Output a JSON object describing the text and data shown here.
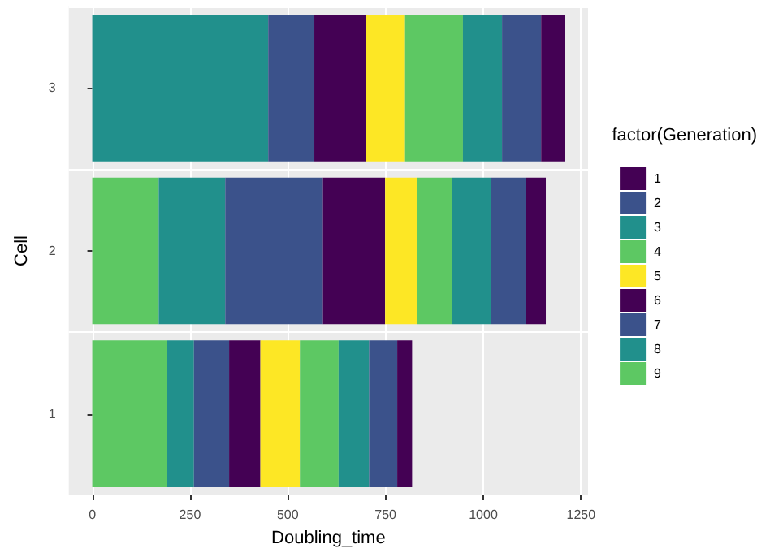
{
  "chart_data": {
    "type": "bar",
    "orientation": "horizontal",
    "stacked": true,
    "xlabel": "Doubling_time",
    "ylabel": "Cell",
    "legend_title": "factor(Generation)",
    "categories": [
      "3",
      "2",
      "1"
    ],
    "series": [
      {
        "name": "9",
        "color": "#5dc863",
        "values": [
          null,
          170,
          190
        ]
      },
      {
        "name": "8",
        "color": "#21908c",
        "values": [
          450,
          170,
          70
        ]
      },
      {
        "name": "7",
        "color": "#3b528b",
        "values": [
          118,
          250,
          90
        ]
      },
      {
        "name": "6",
        "color": "#440154",
        "values": [
          131,
          159,
          80
        ]
      },
      {
        "name": "5",
        "color": "#fde725",
        "values": [
          101,
          81,
          101
        ]
      },
      {
        "name": "4",
        "color": "#5dc863",
        "values": [
          148,
          91,
          99
        ]
      },
      {
        "name": "3",
        "color": "#21908c",
        "values": [
          100,
          98,
          78
        ]
      },
      {
        "name": "2",
        "color": "#3b528b",
        "values": [
          100,
          90,
          72
        ]
      },
      {
        "name": "1",
        "color": "#440154",
        "values": [
          60,
          51,
          38
        ]
      }
    ],
    "xlim": [
      -60,
      1268
    ],
    "xticks": [
      0,
      250,
      500,
      750,
      1000,
      1250
    ],
    "grid": true,
    "legend": "right"
  }
}
